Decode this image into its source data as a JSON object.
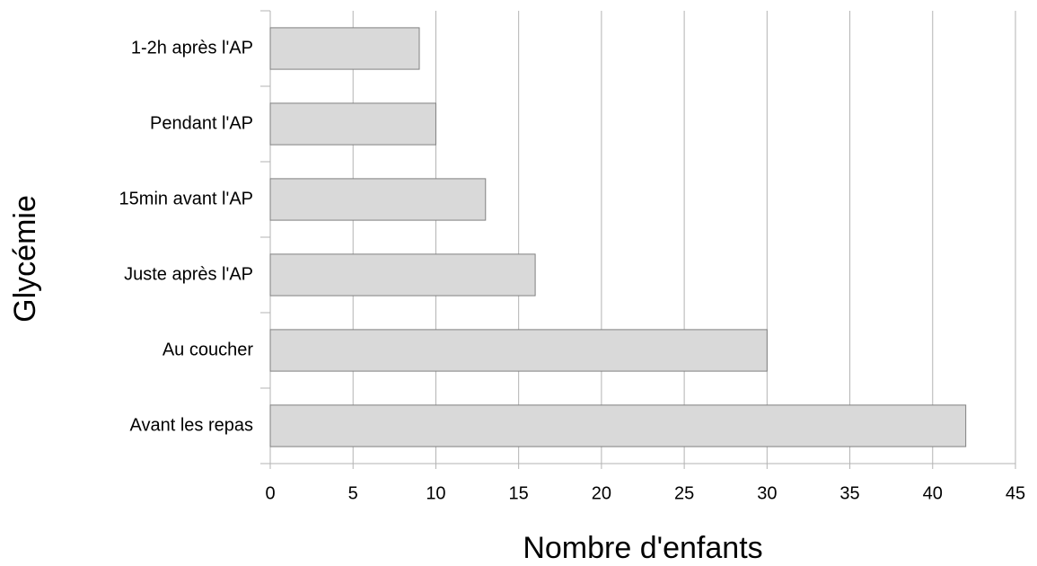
{
  "chart_data": {
    "type": "bar",
    "orientation": "horizontal",
    "categories": [
      "1-2h après l'AP",
      "Pendant l'AP",
      "15min avant l'AP",
      "Juste après l'AP",
      "Au coucher",
      "Avant les repas"
    ],
    "values": [
      9,
      10,
      13,
      16,
      30,
      42
    ],
    "color": "#d9d9d9",
    "xlabel": "Nombre d'enfants",
    "ylabel": "Glycémie",
    "xlim": [
      0,
      45
    ],
    "xticks": [
      0,
      5,
      10,
      15,
      20,
      25,
      30,
      35,
      40,
      45
    ],
    "grid": true
  }
}
